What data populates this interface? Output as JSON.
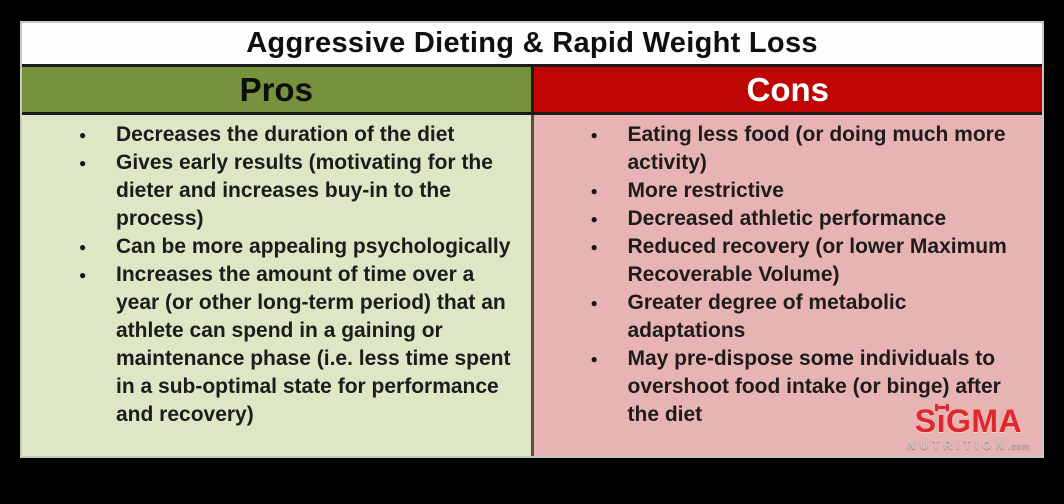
{
  "title": "Aggressive Dieting & Rapid Weight Loss",
  "columns": [
    {
      "header": "Pros",
      "items": [
        "Decreases the duration of the diet",
        "Gives early results (motivating for the dieter and increases buy-in to the process)",
        "Can be more appealing psychologically",
        "Increases the amount of time over a year (or other long-term period) that an athlete can spend in a gaining or maintenance phase (i.e. less time spent in a sub-optimal state for performance and recovery)"
      ]
    },
    {
      "header": "Cons",
      "items": [
        "Eating less food (or doing much more activity)",
        "More restrictive",
        "Decreased athletic performance",
        "Reduced recovery (or lower Maximum Recoverable Volume)",
        "Greater degree of metabolic adaptations",
        "May pre-dispose some individuals to overshoot food intake (or binge) after the diet"
      ]
    }
  ],
  "logo": {
    "brand_left": "S",
    "brand_dotless_i": "ı",
    "brand_right": "GMA",
    "tagline": "NUTRITION",
    "tld": ".com"
  },
  "colors": {
    "pros_header_bg": "#76923C",
    "cons_header_bg": "#C00505",
    "pros_body_bg": "#DDE6C5",
    "cons_body_bg": "#E7B4B3",
    "title_bar_bg": "#FDFDFD",
    "frame_bg": "#000000",
    "logo_red": "#E0282C"
  }
}
